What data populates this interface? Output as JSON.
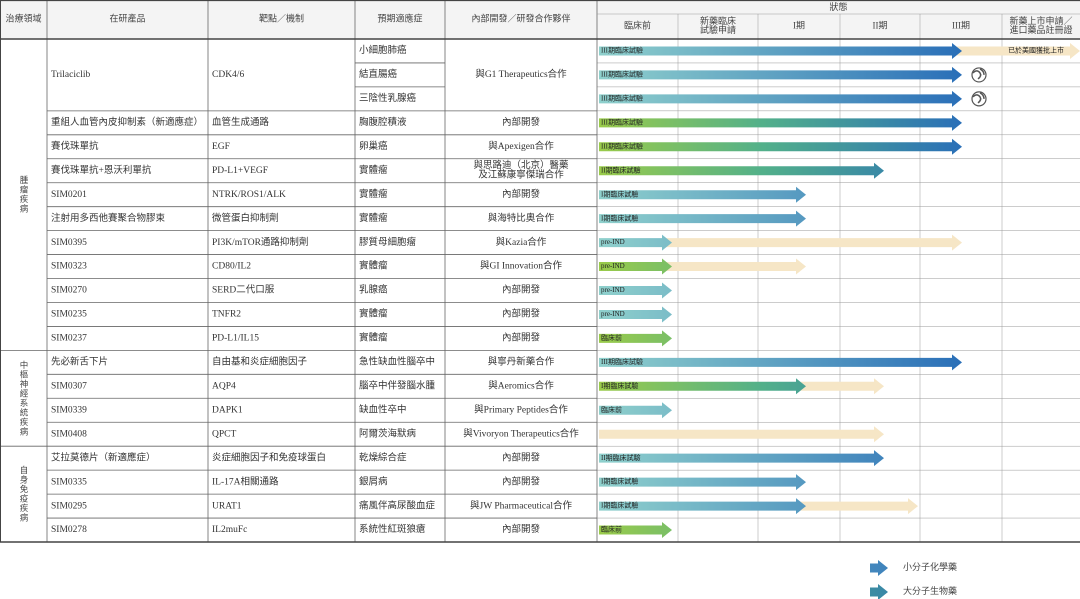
{
  "header": {
    "columns": [
      "治療領域",
      "在研產品",
      "靶點／機制",
      "預期適應症",
      "內部開發／研發合作夥伴"
    ],
    "status": "狀態",
    "stages": [
      "臨床前",
      [
        "新藥臨床",
        "試驗申請"
      ],
      "I期",
      "II期",
      "III期",
      [
        "新藥上市申請／",
        "進口藥品註冊證"
      ]
    ]
  },
  "areas": [
    "腫瘤疾病",
    "中樞神經系統疾病",
    "自身免疫疾病"
  ],
  "rows": [
    {
      "product": "Trilaciclib",
      "target": "CDK4/6",
      "indication": "小細胞肺癌",
      "partner": "與G1 Therapeutics合作",
      "stage": "III期臨床試驗"
    },
    {
      "indication": "結直腸癌",
      "stage": "III期臨床試驗"
    },
    {
      "indication": "三陰性乳腺癌",
      "stage": "III期臨床試驗"
    },
    {
      "product": "重組人血管內皮抑制素（新適應症）",
      "target": "血管生成通路",
      "indication": "胸腹腔積液",
      "partner": "內部開發",
      "stage": "III期臨床試驗"
    },
    {
      "product": "賽伐珠單抗",
      "target": "EGF",
      "indication": "卵巢癌",
      "partner": "與Apexigen合作",
      "stage": "III期臨床試驗"
    },
    {
      "product": "賽伐珠單抗+恩沃利單抗",
      "target": "PD-L1+VEGF",
      "indication": "實體瘤",
      "partner": [
        "與思路迪（北京）醫藥",
        "及江蘇康寧傑瑞合作"
      ],
      "stage": "II期臨床試驗"
    },
    {
      "product": "SIM0201",
      "target": "NTRK/ROS1/ALK",
      "indication": "實體瘤",
      "partner": "內部開發",
      "stage": "I期臨床試驗"
    },
    {
      "product": "注射用多西他賽聚合物膠束",
      "target": "微管蛋白抑制劑",
      "indication": "實體瘤",
      "partner": "與海特比奧合作",
      "stage": "I期臨床試驗"
    },
    {
      "product": "SIM0395",
      "target": "PI3K/mTOR通路抑制劑",
      "indication": "膠質母細胞瘤",
      "partner": "與Kazia合作",
      "stage": "pre-IND"
    },
    {
      "product": "SIM0323",
      "target": "CD80/IL2",
      "indication": "實體瘤",
      "partner": "與GI Innovation合作",
      "stage": "pre-IND"
    },
    {
      "product": "SIM0270",
      "target": "SERD二代口服",
      "indication": "乳腺癌",
      "partner": "內部開發",
      "stage": "pre-IND"
    },
    {
      "product": "SIM0235",
      "target": "TNFR2",
      "indication": "實體瘤",
      "partner": "內部開發",
      "stage": "pre-IND"
    },
    {
      "product": "SIM0237",
      "target": "PD-L1/IL15",
      "indication": "實體瘤",
      "partner": "內部開發",
      "stage": "臨床前"
    },
    {
      "product": "先必新舌下片",
      "target": "自由基和炎症細胞因子",
      "indication": "急性缺血性腦卒中",
      "partner": "與寧丹新藥合作",
      "stage": "III期臨床試驗"
    },
    {
      "product": "SIM0307",
      "target": "AQP4",
      "indication": "腦卒中伴發腦水腫",
      "partner": "與Aeromics合作",
      "stage": "I期臨床試驗"
    },
    {
      "product": "SIM0339",
      "target": "DAPK1",
      "indication": "缺血性卒中",
      "partner": "與Primary Peptides合作",
      "stage": "臨床前"
    },
    {
      "product": "SIM0408",
      "target": "QPCT",
      "indication": "阿爾茨海默病",
      "partner": "與Vivoryon Therapeutics合作"
    },
    {
      "product": "艾拉莫德片（新適應症）",
      "target": "炎症細胞因子和免疫球蛋白",
      "indication": "乾燥綜合症",
      "partner": "內部開發",
      "stage": "II期臨床試驗"
    },
    {
      "product": "SIM0335",
      "target": "IL-17A相關通路",
      "indication": "銀屑病",
      "partner": "內部開發",
      "stage": "I期臨床試驗"
    },
    {
      "product": "SIM0295",
      "target": "URAT1",
      "indication": "痛風伴高尿酸血症",
      "partner": "與JW Pharmaceutical合作",
      "stage": "I期臨床試驗"
    },
    {
      "product": "SIM0278",
      "target": "IL2muFc",
      "indication": "系統性紅斑狼瘡",
      "partner": "內部開發",
      "stage": "臨床前"
    }
  ],
  "annotation": "已於美國獲批上市",
  "legend": [
    "小分子化學藥",
    "大分子生物藥"
  ]
}
